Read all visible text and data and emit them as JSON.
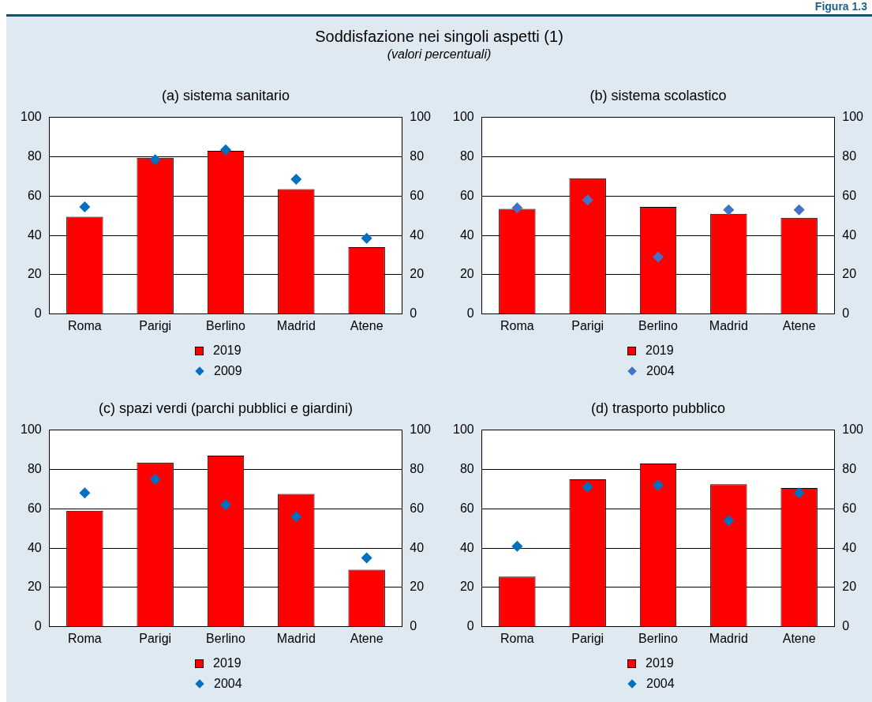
{
  "chart_data": [
    {
      "type": "other",
      "title": "Soddisfazione nei singoli aspetti (1)",
      "subtitle": "(valori percentuali)",
      "annotations": [
        "Figura 1.3"
      ]
    },
    {
      "type": "bar",
      "title": "(a) sistema sanitario",
      "categories": [
        "Roma",
        "Parigi",
        "Berlino",
        "Madrid",
        "Atene"
      ],
      "series": [
        {
          "name": "2019",
          "color": "#ff0000",
          "values": [
            49.5,
            79.5,
            83,
            63.5,
            34
          ]
        },
        {
          "name": "2009",
          "type": "scatter",
          "color": "#0070c0",
          "x": [
            "Roma",
            "Parigi",
            "Berlino",
            "Madrid",
            "Atene"
          ],
          "values": [
            54.5,
            78.5,
            83.5,
            68.5,
            38.5
          ]
        }
      ],
      "ylim": [
        0,
        100
      ],
      "yticks": [
        0,
        20,
        40,
        60,
        80,
        100
      ],
      "y2lim": [
        0,
        100
      ],
      "y2ticks": [
        0,
        20,
        40,
        60,
        80,
        100
      ],
      "grid": "y",
      "legend": "bottom",
      "marker": "diamond"
    },
    {
      "type": "bar",
      "title": "(b) sistema scolastico",
      "categories": [
        "Roma",
        "Parigi",
        "Berlino",
        "Madrid",
        "Atene"
      ],
      "series": [
        {
          "name": "2019",
          "color": "#ff0000",
          "values": [
            53.5,
            69,
            54.5,
            51,
            49
          ]
        },
        {
          "name": "2004",
          "type": "scatter",
          "color": "#4472c4",
          "x": [
            "Roma",
            "Parigi",
            "Berlino",
            "Madrid",
            "Atene"
          ],
          "values": [
            54,
            58,
            29,
            53,
            53
          ]
        }
      ],
      "ylim": [
        0,
        100
      ],
      "yticks": [
        0,
        20,
        40,
        60,
        80,
        100
      ],
      "y2lim": [
        0,
        100
      ],
      "y2ticks": [
        0,
        20,
        40,
        60,
        80,
        100
      ],
      "grid": "y",
      "legend": "bottom",
      "marker": "diamond"
    },
    {
      "type": "bar",
      "title": "(c) spazi verdi (parchi pubblici e giardini)",
      "categories": [
        "Roma",
        "Parigi",
        "Berlino",
        "Madrid",
        "Atene"
      ],
      "series": [
        {
          "name": "2019",
          "color": "#ff0000",
          "values": [
            59,
            83.5,
            87,
            67.5,
            29
          ]
        },
        {
          "name": "2004",
          "type": "scatter",
          "color": "#0070c0",
          "x": [
            "Roma",
            "Parigi",
            "Berlino",
            "Madrid",
            "Atene"
          ],
          "values": [
            68,
            75,
            62,
            56,
            35
          ]
        }
      ],
      "ylim": [
        0,
        100
      ],
      "yticks": [
        0,
        20,
        40,
        60,
        80,
        100
      ],
      "y2lim": [
        0,
        100
      ],
      "y2ticks": [
        0,
        20,
        40,
        60,
        80,
        100
      ],
      "grid": "y",
      "legend": "bottom",
      "marker": "diamond"
    },
    {
      "type": "bar",
      "title": "(d) trasporto pubblico",
      "categories": [
        "Roma",
        "Parigi",
        "Berlino",
        "Madrid",
        "Atene"
      ],
      "series": [
        {
          "name": "2019",
          "color": "#ff0000",
          "values": [
            25.5,
            75,
            83,
            72.5,
            70.5
          ]
        },
        {
          "name": "2004",
          "type": "scatter",
          "color": "#0070c0",
          "x": [
            "Roma",
            "Parigi",
            "Berlino",
            "Madrid",
            "Atene"
          ],
          "values": [
            41,
            71,
            72,
            54,
            68
          ]
        }
      ],
      "ylim": [
        0,
        100
      ],
      "yticks": [
        0,
        20,
        40,
        60,
        80,
        100
      ],
      "y2lim": [
        0,
        100
      ],
      "y2ticks": [
        0,
        20,
        40,
        60,
        80,
        100
      ],
      "grid": "y",
      "legend": "bottom",
      "marker": "diamond"
    }
  ]
}
